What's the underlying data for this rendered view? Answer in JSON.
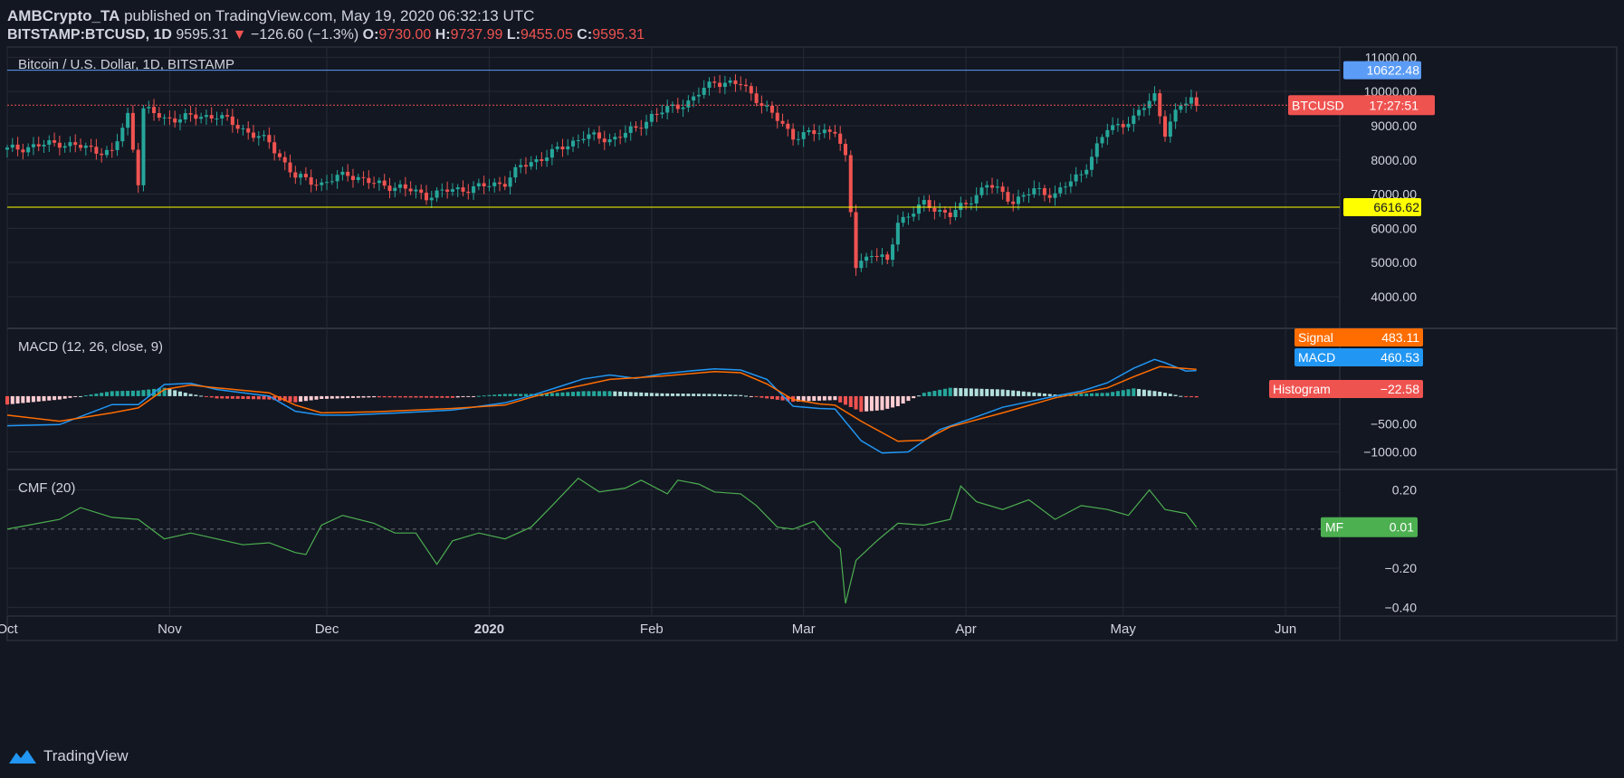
{
  "header": {
    "publisher": "AMBCrypto_TA",
    "published_text": "published on TradingView.com, May 19, 2020 06:32:13 UTC",
    "symbol": "BITSTAMP:BTCUSD, 1D",
    "last": "9595.31",
    "change": "−126.60 (−1.3%)",
    "o_label": "O:",
    "o": "9730.00",
    "h_label": "H:",
    "h": "9737.99",
    "l_label": "L:",
    "l": "9455.05",
    "c_label": "C:",
    "c": "9595.31"
  },
  "footer": {
    "brand": "TradingView"
  },
  "chart_data": [
    {
      "type": "candlestick",
      "title": "Bitcoin / U.S. Dollar, 1D, BITSTAMP",
      "ylim": [
        3100,
        11300
      ],
      "ticks": [
        4000,
        5000,
        6000,
        7000,
        8000,
        9000,
        10000,
        11000
      ],
      "tick_labels": [
        "4000.00",
        "5000.00",
        "6000.00",
        "7000.00",
        "8000.00",
        "9000.00",
        "10000.00",
        "11000.00"
      ],
      "x_labels": [
        "Oct",
        "Nov",
        "Dec",
        "2020",
        "Feb",
        "Mar",
        "Apr",
        "May",
        "Jun"
      ],
      "x_label_days": [
        0,
        31,
        61,
        92,
        123,
        152,
        183,
        213,
        244
      ],
      "start_date": "2019-10-01",
      "close_points": [
        [
          0,
          8300
        ],
        [
          10,
          8500
        ],
        [
          20,
          8200
        ],
        [
          23,
          9300
        ],
        [
          25,
          7400
        ],
        [
          26,
          9500
        ],
        [
          30,
          9200
        ],
        [
          40,
          9300
        ],
        [
          50,
          8500
        ],
        [
          55,
          7500
        ],
        [
          60,
          7300
        ],
        [
          65,
          7600
        ],
        [
          70,
          7300
        ],
        [
          75,
          7200
        ],
        [
          80,
          6950
        ],
        [
          84,
          7100
        ],
        [
          90,
          7200
        ],
        [
          95,
          7350
        ],
        [
          98,
          7800
        ],
        [
          104,
          8200
        ],
        [
          110,
          8700
        ],
        [
          115,
          8600
        ],
        [
          120,
          8900
        ],
        [
          123,
          9300
        ],
        [
          130,
          9700
        ],
        [
          135,
          10300
        ],
        [
          140,
          10200
        ],
        [
          143,
          9800
        ],
        [
          150,
          8700
        ],
        [
          155,
          8800
        ],
        [
          158,
          8900
        ],
        [
          160,
          8000
        ],
        [
          162,
          4900
        ],
        [
          165,
          5300
        ],
        [
          168,
          5000
        ],
        [
          170,
          6200
        ],
        [
          175,
          6700
        ],
        [
          180,
          6400
        ],
        [
          183,
          6700
        ],
        [
          187,
          7300
        ],
        [
          192,
          6800
        ],
        [
          196,
          7100
        ],
        [
          200,
          7000
        ],
        [
          205,
          7600
        ],
        [
          210,
          8900
        ],
        [
          215,
          9200
        ],
        [
          219,
          9900
        ],
        [
          221,
          8800
        ],
        [
          224,
          9600
        ],
        [
          226,
          9800
        ],
        [
          227,
          9595
        ]
      ],
      "series": [
        {
          "name": "BTCUSD",
          "label": "BTCUSD",
          "value": "9595.31",
          "countdown": "17:27:51",
          "color": "#ef5350"
        }
      ],
      "levels": [
        {
          "value": 10622.48,
          "label": "10622.48",
          "color": "#5b9cf6"
        },
        {
          "value": 6616.62,
          "label": "6616.62",
          "color": "#ffff00"
        }
      ],
      "up_color": "#26a69a",
      "down_color": "#ef5350"
    },
    {
      "type": "line",
      "title": "MACD (12, 26, close, 9)",
      "ylim": [
        -1300,
        1200
      ],
      "ticks": [
        -1000,
        -500
      ],
      "tick_labels": [
        "−1000.00",
        "−500.00"
      ],
      "series": [
        {
          "name": "MACD",
          "label": "MACD",
          "value": "460.53",
          "color": "#2196f3",
          "points": [
            [
              0,
              -530
            ],
            [
              10,
              -510
            ],
            [
              20,
              -150
            ],
            [
              25,
              -150
            ],
            [
              30,
              210
            ],
            [
              35,
              230
            ],
            [
              40,
              120
            ],
            [
              50,
              0
            ],
            [
              55,
              -270
            ],
            [
              60,
              -340
            ],
            [
              65,
              -340
            ],
            [
              75,
              -300
            ],
            [
              85,
              -250
            ],
            [
              95,
              -120
            ],
            [
              100,
              10
            ],
            [
              105,
              160
            ],
            [
              110,
              310
            ],
            [
              115,
              380
            ],
            [
              120,
              320
            ],
            [
              125,
              400
            ],
            [
              130,
              450
            ],
            [
              135,
              490
            ],
            [
              140,
              470
            ],
            [
              145,
              300
            ],
            [
              150,
              -180
            ],
            [
              155,
              -220
            ],
            [
              158,
              -230
            ],
            [
              163,
              -800
            ],
            [
              167,
              -1020
            ],
            [
              172,
              -1000
            ],
            [
              178,
              -600
            ],
            [
              185,
              -370
            ],
            [
              190,
              -200
            ],
            [
              200,
              0
            ],
            [
              205,
              90
            ],
            [
              210,
              240
            ],
            [
              215,
              500
            ],
            [
              219,
              660
            ],
            [
              221,
              600
            ],
            [
              225,
              450
            ],
            [
              227,
              460
            ]
          ]
        },
        {
          "name": "Signal",
          "label": "Signal",
          "value": "483.11",
          "color": "#ff6d00",
          "points": [
            [
              0,
              -340
            ],
            [
              10,
              -450
            ],
            [
              20,
              -300
            ],
            [
              25,
              -210
            ],
            [
              30,
              120
            ],
            [
              35,
              200
            ],
            [
              40,
              150
            ],
            [
              50,
              60
            ],
            [
              55,
              -160
            ],
            [
              60,
              -300
            ],
            [
              70,
              -280
            ],
            [
              85,
              -220
            ],
            [
              95,
              -160
            ],
            [
              100,
              -20
            ],
            [
              105,
              100
            ],
            [
              110,
              200
            ],
            [
              115,
              300
            ],
            [
              125,
              360
            ],
            [
              135,
              440
            ],
            [
              140,
              420
            ],
            [
              145,
              220
            ],
            [
              150,
              -60
            ],
            [
              155,
              -140
            ],
            [
              158,
              -160
            ],
            [
              163,
              -450
            ],
            [
              170,
              -810
            ],
            [
              175,
              -790
            ],
            [
              180,
              -550
            ],
            [
              190,
              -300
            ],
            [
              200,
              -30
            ],
            [
              210,
              150
            ],
            [
              215,
              350
            ],
            [
              220,
              530
            ],
            [
              227,
              483
            ]
          ]
        },
        {
          "name": "Histogram",
          "label": "Histogram",
          "value": "−22.58",
          "color": "#ef5350",
          "points": [
            [
              0,
              -150
            ],
            [
              10,
              -60
            ],
            [
              20,
              90
            ],
            [
              25,
              100
            ],
            [
              30,
              150
            ],
            [
              35,
              40
            ],
            [
              40,
              -40
            ],
            [
              50,
              -60
            ],
            [
              55,
              -110
            ],
            [
              60,
              -50
            ],
            [
              70,
              -20
            ],
            [
              85,
              -30
            ],
            [
              95,
              40
            ],
            [
              100,
              40
            ],
            [
              105,
              60
            ],
            [
              110,
              90
            ],
            [
              115,
              90
            ],
            [
              125,
              50
            ],
            [
              135,
              40
            ],
            [
              140,
              20
            ],
            [
              145,
              -40
            ],
            [
              150,
              -100
            ],
            [
              155,
              -80
            ],
            [
              158,
              -70
            ],
            [
              163,
              -280
            ],
            [
              167,
              -250
            ],
            [
              170,
              -180
            ],
            [
              175,
              60
            ],
            [
              180,
              150
            ],
            [
              190,
              120
            ],
            [
              200,
              30
            ],
            [
              210,
              60
            ],
            [
              215,
              140
            ],
            [
              220,
              80
            ],
            [
              225,
              -15
            ],
            [
              227,
              -22
            ]
          ]
        }
      ]
    },
    {
      "type": "line",
      "title": "CMF (20)",
      "ylim": [
        -0.44,
        0.3
      ],
      "ticks": [
        0.2,
        -0.2,
        -0.4
      ],
      "tick_labels": [
        "0.20",
        "−0.20",
        "−0.40"
      ],
      "series": [
        {
          "name": "MF",
          "label": "MF",
          "value": "0.01",
          "color": "#4caf50",
          "points": [
            [
              0,
              0.0
            ],
            [
              10,
              0.05
            ],
            [
              14,
              0.11
            ],
            [
              20,
              0.06
            ],
            [
              25,
              0.05
            ],
            [
              30,
              -0.05
            ],
            [
              35,
              -0.02
            ],
            [
              40,
              -0.05
            ],
            [
              45,
              -0.08
            ],
            [
              50,
              -0.07
            ],
            [
              55,
              -0.12
            ],
            [
              57,
              -0.13
            ],
            [
              60,
              0.02
            ],
            [
              64,
              0.07
            ],
            [
              70,
              0.03
            ],
            [
              74,
              -0.02
            ],
            [
              78,
              -0.02
            ],
            [
              82,
              -0.18
            ],
            [
              85,
              -0.06
            ],
            [
              90,
              -0.02
            ],
            [
              95,
              -0.05
            ],
            [
              100,
              0.01
            ],
            [
              104,
              0.12
            ],
            [
              109,
              0.26
            ],
            [
              113,
              0.19
            ],
            [
              118,
              0.21
            ],
            [
              121,
              0.25
            ],
            [
              126,
              0.18
            ],
            [
              128,
              0.25
            ],
            [
              132,
              0.23
            ],
            [
              135,
              0.19
            ],
            [
              140,
              0.18
            ],
            [
              143,
              0.12
            ],
            [
              147,
              0.01
            ],
            [
              150,
              0.0
            ],
            [
              154,
              0.04
            ],
            [
              157,
              -0.05
            ],
            [
              159,
              -0.1
            ],
            [
              160,
              -0.38
            ],
            [
              162,
              -0.16
            ],
            [
              166,
              -0.06
            ],
            [
              170,
              0.03
            ],
            [
              175,
              0.02
            ],
            [
              180,
              0.05
            ],
            [
              182,
              0.22
            ],
            [
              185,
              0.14
            ],
            [
              190,
              0.1
            ],
            [
              195,
              0.15
            ],
            [
              200,
              0.05
            ],
            [
              205,
              0.12
            ],
            [
              210,
              0.1
            ],
            [
              214,
              0.07
            ],
            [
              218,
              0.2
            ],
            [
              221,
              0.1
            ],
            [
              225,
              0.08
            ],
            [
              227,
              0.01
            ]
          ]
        }
      ]
    }
  ]
}
